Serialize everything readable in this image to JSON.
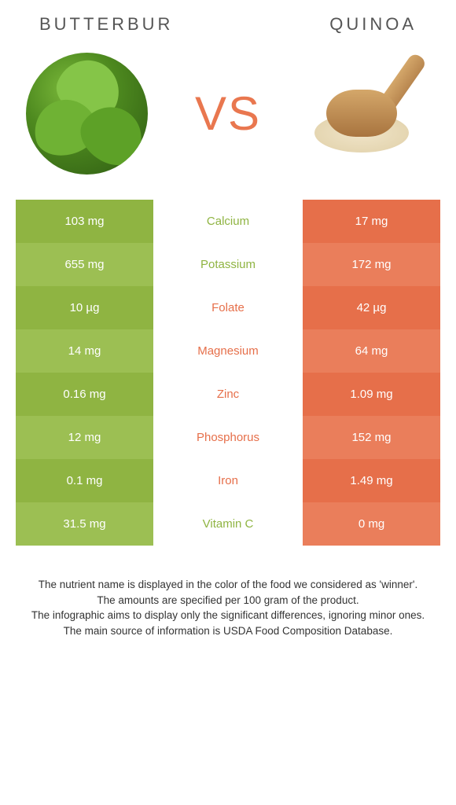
{
  "header": {
    "left_title": "BUTTERBUR",
    "right_title": "QUINOA"
  },
  "vs_label": "VS",
  "colors": {
    "green_odd": "#8fb442",
    "green_even": "#9cbf53",
    "orange_odd": "#e66f4a",
    "orange_even": "#ea7e5b",
    "text_green": "#8fb442",
    "text_orange": "#e66f4a"
  },
  "nutrients": [
    {
      "name": "Calcium",
      "left": "103 mg",
      "right": "17 mg",
      "winner": "green"
    },
    {
      "name": "Potassium",
      "left": "655 mg",
      "right": "172 mg",
      "winner": "green"
    },
    {
      "name": "Folate",
      "left": "10 µg",
      "right": "42 µg",
      "winner": "orange"
    },
    {
      "name": "Magnesium",
      "left": "14 mg",
      "right": "64 mg",
      "winner": "orange"
    },
    {
      "name": "Zinc",
      "left": "0.16 mg",
      "right": "1.09 mg",
      "winner": "orange"
    },
    {
      "name": "Phosphorus",
      "left": "12 mg",
      "right": "152 mg",
      "winner": "orange"
    },
    {
      "name": "Iron",
      "left": "0.1 mg",
      "right": "1.49 mg",
      "winner": "orange"
    },
    {
      "name": "Vitamin C",
      "left": "31.5 mg",
      "right": "0 mg",
      "winner": "green"
    }
  ],
  "footer": {
    "line1": "The nutrient name is displayed in the color of the food we considered as 'winner'.",
    "line2": "The amounts are specified per 100 gram of the product.",
    "line3": "The infographic aims to display only the significant differences, ignoring minor ones.",
    "line4": "The main source of information is USDA Food Composition Database."
  }
}
